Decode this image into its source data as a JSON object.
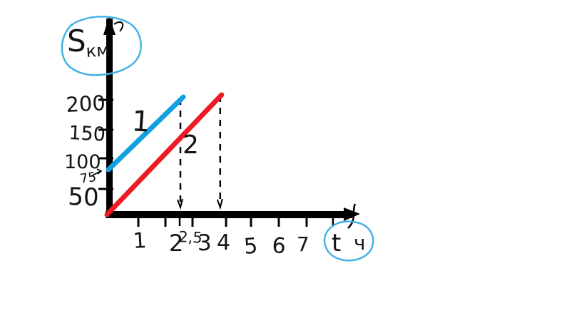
{
  "page": {
    "background": "#ffffff"
  },
  "chart_data": {
    "type": "line",
    "title": "",
    "description": "Hand-drawn distance-time graph with two straight motion lines",
    "y_axis": {
      "label_symbol": "S",
      "label_unit": "км",
      "ticks": [
        {
          "value": 50,
          "label": "50"
        },
        {
          "value": 100,
          "label": "100"
        },
        {
          "value": 150,
          "label": "150"
        },
        {
          "value": 200,
          "label": "200"
        }
      ],
      "start_annotation": {
        "value": 75,
        "label": "75"
      }
    },
    "x_axis": {
      "label_symbol": "t",
      "label_unit": "ч",
      "ticks": [
        {
          "value": 1,
          "label": "1"
        },
        {
          "value": 2,
          "label": "2"
        },
        {
          "value": 3,
          "label": "3"
        },
        {
          "value": 4,
          "label": "4"
        },
        {
          "value": 5,
          "label": "5"
        },
        {
          "value": 6,
          "label": "6"
        },
        {
          "value": 7,
          "label": "7"
        }
      ],
      "intersect_annotation": {
        "value": 2.5,
        "label": "2,5"
      }
    },
    "series": [
      {
        "name": "1",
        "color": "#13a0e0",
        "points": [
          {
            "t": 0,
            "s": 75
          },
          {
            "t": 2.5,
            "s": 200
          }
        ]
      },
      {
        "name": "2",
        "color": "#ed1c24",
        "points": [
          {
            "t": 0,
            "s": 0
          },
          {
            "t": 4,
            "s": 200
          }
        ]
      }
    ],
    "guide_lines": [
      {
        "x": 2.5,
        "style": "dashed"
      },
      {
        "x": 4,
        "style": "dashed"
      }
    ],
    "colors": {
      "axis": "#000000",
      "text": "#141414",
      "annotation_circle": "#3fb0e5",
      "background": "#ffffff"
    },
    "xlim": [
      0,
      8.3
    ],
    "ylim": [
      0,
      240
    ],
    "grid": false,
    "legend": "inline-labels"
  }
}
